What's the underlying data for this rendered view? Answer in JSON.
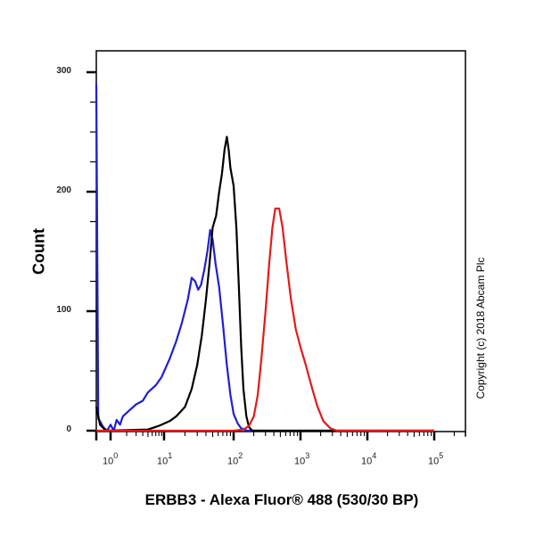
{
  "chart_data": {
    "type": "line",
    "title": "",
    "xlabel": "ERBB3 - Alexa Fluor® 488 (530/30 BP)",
    "ylabel": "Count",
    "x_scale": "log",
    "x_tick_labels": [
      "10^0",
      "10^1",
      "10^2",
      "10^3",
      "10^4",
      "10^5"
    ],
    "y_tick_labels": [
      "0",
      "100",
      "200",
      "300"
    ],
    "ylim": [
      0,
      300
    ],
    "grid": false,
    "legend": null,
    "annotation": "Copyright (c) 2018 Abcam Plc",
    "series": [
      {
        "name": "blue",
        "color": "#1f1fd6",
        "description": "Blue histogram, peak ~168 counts near 10^1.6",
        "points": [
          [
            0.5,
            290
          ],
          [
            0.55,
            10
          ],
          [
            0.6,
            8
          ],
          [
            0.7,
            3
          ],
          [
            0.85,
            0
          ],
          [
            1.0,
            5
          ],
          [
            1.15,
            0
          ],
          [
            1.3,
            9
          ],
          [
            1.5,
            5
          ],
          [
            1.7,
            12
          ],
          [
            2,
            15
          ],
          [
            3,
            22
          ],
          [
            4,
            25
          ],
          [
            5,
            32
          ],
          [
            7,
            38
          ],
          [
            9,
            45
          ],
          [
            12,
            60
          ],
          [
            15,
            75
          ],
          [
            18,
            90
          ],
          [
            22,
            110
          ],
          [
            25,
            128
          ],
          [
            28,
            125
          ],
          [
            31,
            118
          ],
          [
            34,
            122
          ],
          [
            38,
            135
          ],
          [
            42,
            150
          ],
          [
            46,
            168
          ],
          [
            50,
            160
          ],
          [
            55,
            140
          ],
          [
            62,
            120
          ],
          [
            70,
            90
          ],
          [
            80,
            55
          ],
          [
            90,
            30
          ],
          [
            100,
            14
          ],
          [
            115,
            6
          ],
          [
            130,
            2
          ],
          [
            160,
            0
          ],
          [
            100000.0,
            0
          ]
        ]
      },
      {
        "name": "black",
        "color": "#000000",
        "description": "Black histogram, peak ~246 counts near 10^1.95",
        "points": [
          [
            0.5,
            20
          ],
          [
            0.6,
            5
          ],
          [
            0.8,
            0
          ],
          [
            5,
            1
          ],
          [
            8,
            4
          ],
          [
            12,
            8
          ],
          [
            15,
            12
          ],
          [
            20,
            20
          ],
          [
            25,
            35
          ],
          [
            30,
            55
          ],
          [
            35,
            80
          ],
          [
            40,
            110
          ],
          [
            45,
            140
          ],
          [
            50,
            170
          ],
          [
            56,
            180
          ],
          [
            62,
            200
          ],
          [
            68,
            215
          ],
          [
            74,
            235
          ],
          [
            80,
            246
          ],
          [
            85,
            235
          ],
          [
            90,
            220
          ],
          [
            100,
            205
          ],
          [
            110,
            170
          ],
          [
            120,
            120
          ],
          [
            130,
            70
          ],
          [
            140,
            35
          ],
          [
            155,
            12
          ],
          [
            170,
            3
          ],
          [
            190,
            0
          ],
          [
            100000.0,
            0
          ]
        ]
      },
      {
        "name": "red",
        "color": "#e41a1a",
        "description": "Red histogram, peak ~186 counts near 10^2.65",
        "points": [
          [
            0.5,
            0
          ],
          [
            100,
            0
          ],
          [
            140,
            1
          ],
          [
            170,
            4
          ],
          [
            200,
            12
          ],
          [
            230,
            30
          ],
          [
            260,
            60
          ],
          [
            300,
            100
          ],
          [
            340,
            140
          ],
          [
            380,
            170
          ],
          [
            420,
            186
          ],
          [
            480,
            186
          ],
          [
            540,
            170
          ],
          [
            620,
            140
          ],
          [
            720,
            110
          ],
          [
            850,
            85
          ],
          [
            1000,
            70
          ],
          [
            1200,
            55
          ],
          [
            1500,
            35
          ],
          [
            1800,
            20
          ],
          [
            2200,
            8
          ],
          [
            2800,
            2
          ],
          [
            3500,
            0
          ],
          [
            100000.0,
            0
          ]
        ]
      }
    ]
  },
  "labels": {
    "ylabel": "Count",
    "xlabel": "ERBB3 - Alexa Fluor® 488 (530/30 BP)",
    "copyright": "Copyright (c) 2018 Abcam Plc",
    "yticks": [
      "0",
      "100",
      "200",
      "300"
    ],
    "xticks": [
      {
        "base": "10",
        "exp": "0"
      },
      {
        "base": "10",
        "exp": "1"
      },
      {
        "base": "10",
        "exp": "2"
      },
      {
        "base": "10",
        "exp": "3"
      },
      {
        "base": "10",
        "exp": "4"
      },
      {
        "base": "10",
        "exp": "5"
      }
    ]
  }
}
